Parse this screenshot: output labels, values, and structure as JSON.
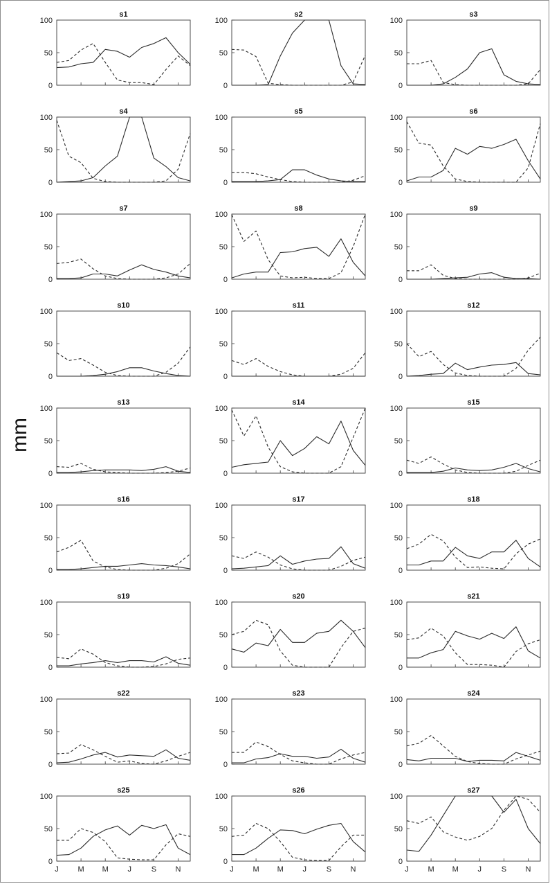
{
  "chart_data": {
    "type": "line",
    "ylabel": "mm",
    "xticks": [
      "J",
      "M",
      "M",
      "J",
      "S",
      "N"
    ],
    "yticks": [
      0,
      50,
      100
    ],
    "ylim": [
      0,
      100
    ],
    "grid": false,
    "series_styles": {
      "solid": {
        "dash": false,
        "color": "#2b2b2b"
      },
      "dashed": {
        "dash": true,
        "color": "#2b2b2b"
      }
    },
    "panels": [
      {
        "title": "s1",
        "solid": [
          27,
          28,
          33,
          35,
          55,
          52,
          43,
          58,
          64,
          73,
          50,
          32
        ],
        "dashed": [
          35,
          38,
          54,
          64,
          35,
          8,
          4,
          4,
          1,
          24,
          45,
          30
        ]
      },
      {
        "title": "s2",
        "solid": [
          0,
          0,
          0,
          1,
          45,
          80,
          100,
          100,
          100,
          30,
          2,
          1
        ],
        "dashed": [
          55,
          54,
          44,
          3,
          1,
          0,
          0,
          0,
          0,
          0,
          5,
          46
        ]
      },
      {
        "title": "s3",
        "solid": [
          0,
          0,
          0,
          2,
          12,
          25,
          50,
          56,
          16,
          6,
          2,
          1
        ],
        "dashed": [
          33,
          33,
          38,
          4,
          1,
          0,
          0,
          0,
          0,
          0,
          2,
          24
        ]
      },
      {
        "title": "s4",
        "solid": [
          0,
          1,
          2,
          7,
          25,
          40,
          100,
          100,
          37,
          24,
          7,
          2
        ],
        "dashed": [
          95,
          40,
          30,
          6,
          1,
          0,
          0,
          0,
          0,
          2,
          20,
          75
        ]
      },
      {
        "title": "s5",
        "solid": [
          1,
          1,
          1,
          2,
          4,
          19,
          19,
          11,
          5,
          2,
          1,
          1
        ],
        "dashed": [
          15,
          15,
          13,
          8,
          4,
          1,
          0,
          0,
          0,
          0,
          3,
          10
        ]
      },
      {
        "title": "s6",
        "solid": [
          2,
          8,
          8,
          18,
          52,
          43,
          55,
          52,
          58,
          66,
          33,
          5
        ],
        "dashed": [
          93,
          60,
          57,
          25,
          5,
          1,
          0,
          0,
          0,
          0,
          22,
          90
        ]
      },
      {
        "title": "s7",
        "solid": [
          1,
          1,
          2,
          8,
          8,
          5,
          14,
          22,
          15,
          11,
          5,
          2
        ],
        "dashed": [
          24,
          26,
          31,
          16,
          5,
          1,
          0,
          0,
          0,
          2,
          8,
          24
        ]
      },
      {
        "title": "s8",
        "solid": [
          2,
          8,
          11,
          11,
          41,
          42,
          47,
          49,
          35,
          62,
          26,
          5
        ],
        "dashed": [
          99,
          58,
          74,
          30,
          5,
          2,
          3,
          1,
          1,
          10,
          50,
          100
        ]
      },
      {
        "title": "s9",
        "solid": [
          0,
          0,
          0,
          1,
          2,
          3,
          8,
          10,
          3,
          1,
          1,
          0
        ],
        "dashed": [
          13,
          13,
          22,
          6,
          1,
          0,
          0,
          0,
          0,
          0,
          2,
          9
        ]
      },
      {
        "title": "s10",
        "solid": [
          0,
          0,
          0,
          1,
          3,
          7,
          13,
          13,
          8,
          4,
          1,
          0
        ],
        "dashed": [
          36,
          24,
          27,
          17,
          6,
          1,
          0,
          0,
          0,
          6,
          20,
          45
        ]
      },
      {
        "title": "s11",
        "solid": [
          0,
          0,
          0,
          0,
          0,
          0,
          0,
          0,
          0,
          0,
          0,
          0
        ],
        "dashed": [
          24,
          18,
          27,
          15,
          7,
          2,
          0,
          0,
          0,
          3,
          12,
          36
        ]
      },
      {
        "title": "s12",
        "solid": [
          0,
          1,
          3,
          4,
          20,
          10,
          14,
          17,
          18,
          21,
          4,
          2
        ],
        "dashed": [
          50,
          30,
          38,
          18,
          5,
          1,
          0,
          0,
          0,
          12,
          40,
          60
        ]
      },
      {
        "title": "s13",
        "solid": [
          1,
          1,
          2,
          4,
          5,
          5,
          5,
          4,
          6,
          10,
          3,
          1
        ],
        "dashed": [
          10,
          9,
          15,
          6,
          2,
          1,
          0,
          0,
          0,
          1,
          3,
          8
        ]
      },
      {
        "title": "s14",
        "solid": [
          9,
          13,
          15,
          17,
          50,
          27,
          38,
          56,
          45,
          80,
          35,
          12
        ],
        "dashed": [
          97,
          57,
          88,
          40,
          10,
          2,
          0,
          0,
          0,
          10,
          55,
          100
        ]
      },
      {
        "title": "s15",
        "solid": [
          1,
          1,
          1,
          3,
          8,
          5,
          4,
          5,
          9,
          15,
          7,
          2
        ],
        "dashed": [
          20,
          15,
          25,
          14,
          5,
          1,
          0,
          0,
          0,
          3,
          12,
          20
        ]
      },
      {
        "title": "s16",
        "solid": [
          1,
          1,
          2,
          4,
          6,
          6,
          8,
          10,
          8,
          7,
          5,
          2
        ],
        "dashed": [
          28,
          35,
          46,
          14,
          5,
          1,
          0,
          0,
          0,
          3,
          10,
          25
        ]
      },
      {
        "title": "s17",
        "solid": [
          2,
          3,
          5,
          7,
          22,
          9,
          14,
          17,
          18,
          36,
          10,
          3
        ],
        "dashed": [
          22,
          18,
          28,
          20,
          8,
          2,
          0,
          0,
          0,
          6,
          15,
          20
        ]
      },
      {
        "title": "s18",
        "solid": [
          8,
          8,
          14,
          14,
          35,
          22,
          18,
          28,
          28,
          46,
          18,
          5
        ],
        "dashed": [
          33,
          40,
          55,
          45,
          20,
          4,
          5,
          3,
          2,
          25,
          40,
          48
        ]
      },
      {
        "title": "s19",
        "solid": [
          2,
          2,
          5,
          7,
          10,
          7,
          10,
          10,
          8,
          16,
          6,
          3
        ],
        "dashed": [
          15,
          13,
          28,
          20,
          7,
          2,
          0,
          0,
          1,
          5,
          12,
          14
        ]
      },
      {
        "title": "s20",
        "solid": [
          28,
          23,
          37,
          33,
          58,
          38,
          38,
          52,
          55,
          72,
          55,
          30
        ],
        "dashed": [
          50,
          55,
          72,
          65,
          25,
          3,
          0,
          0,
          0,
          30,
          55,
          60
        ]
      },
      {
        "title": "s21",
        "solid": [
          14,
          14,
          22,
          27,
          55,
          48,
          43,
          52,
          44,
          62,
          25,
          14
        ],
        "dashed": [
          42,
          45,
          60,
          48,
          22,
          4,
          4,
          3,
          0,
          24,
          36,
          42
        ]
      },
      {
        "title": "s22",
        "solid": [
          2,
          3,
          8,
          14,
          18,
          11,
          14,
          13,
          12,
          22,
          9,
          6
        ],
        "dashed": [
          16,
          17,
          30,
          22,
          12,
          3,
          5,
          1,
          0,
          5,
          12,
          18
        ]
      },
      {
        "title": "s23",
        "solid": [
          2,
          2,
          8,
          10,
          16,
          12,
          12,
          9,
          11,
          23,
          9,
          3
        ],
        "dashed": [
          18,
          18,
          34,
          27,
          15,
          5,
          2,
          0,
          0,
          8,
          14,
          18
        ]
      },
      {
        "title": "s24",
        "solid": [
          7,
          5,
          9,
          9,
          9,
          4,
          6,
          6,
          5,
          18,
          12,
          6
        ],
        "dashed": [
          28,
          32,
          44,
          28,
          12,
          4,
          1,
          0,
          0,
          8,
          14,
          20
        ]
      },
      {
        "title": "s25",
        "solid": [
          9,
          10,
          20,
          38,
          48,
          54,
          40,
          55,
          50,
          56,
          20,
          10
        ],
        "dashed": [
          32,
          32,
          50,
          44,
          30,
          5,
          3,
          2,
          2,
          25,
          42,
          38
        ]
      },
      {
        "title": "s26",
        "solid": [
          10,
          10,
          20,
          35,
          48,
          47,
          42,
          49,
          55,
          58,
          30,
          14
        ],
        "dashed": [
          38,
          40,
          58,
          50,
          30,
          6,
          2,
          1,
          1,
          22,
          40,
          40
        ]
      },
      {
        "title": "s27",
        "solid": [
          17,
          15,
          40,
          70,
          100,
          100,
          100,
          100,
          75,
          95,
          50,
          27
        ],
        "dashed": [
          62,
          58,
          68,
          45,
          37,
          32,
          38,
          50,
          78,
          100,
          95,
          75
        ]
      }
    ]
  }
}
